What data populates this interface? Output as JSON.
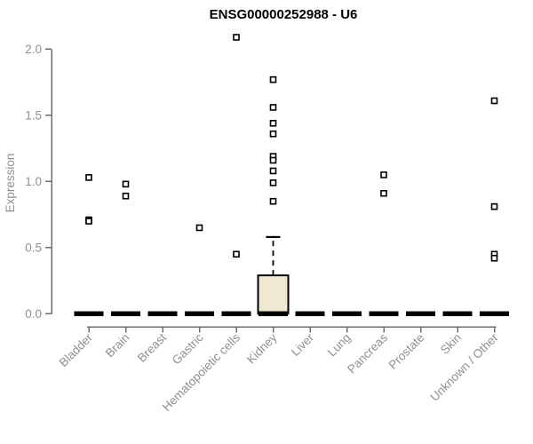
{
  "title": "ENSG00000252988 - U6",
  "ylabel": "Expression",
  "colors": {
    "box_fill": "#f0e9d2",
    "box_stroke": "#000000",
    "median_bar": "#000000",
    "point_stroke": "#000000",
    "point_fill": "#ffffff",
    "axis_line": "#6e6e6e",
    "axis_text": "#8f8f8f",
    "title_text": "#000000"
  },
  "chart_data": {
    "type": "boxplot",
    "title": "ENSG00000252988 - U6",
    "xlabel": "",
    "ylabel": "Expression",
    "ylim": [
      0,
      2.12
    ],
    "grid": false,
    "legend": "none",
    "ytick_values": [
      0.0,
      0.5,
      1.0,
      1.5,
      2.0
    ],
    "ytick_labels": [
      "0.0",
      "0.5",
      "1.0",
      "1.5",
      "2.0"
    ],
    "categories": [
      "Bladder",
      "Brain",
      "Breast",
      "Gastric",
      "Hematopoietic cells",
      "Kidney",
      "Liver",
      "Lung",
      "Pancreas",
      "Prostate",
      "Skin",
      "Unknown / Other"
    ],
    "series": [
      {
        "category": "Bladder",
        "box": {
          "q1": 0,
          "median": 0,
          "q3": 0,
          "whisker_low": 0,
          "whisker_high": 0
        },
        "points": [
          1.03,
          0.71,
          0.7
        ]
      },
      {
        "category": "Brain",
        "box": {
          "q1": 0,
          "median": 0,
          "q3": 0,
          "whisker_low": 0,
          "whisker_high": 0
        },
        "points": [
          0.98,
          0.89
        ]
      },
      {
        "category": "Breast",
        "box": {
          "q1": 0,
          "median": 0,
          "q3": 0,
          "whisker_low": 0,
          "whisker_high": 0
        },
        "points": []
      },
      {
        "category": "Gastric",
        "box": {
          "q1": 0,
          "median": 0,
          "q3": 0,
          "whisker_low": 0,
          "whisker_high": 0
        },
        "points": [
          0.65
        ]
      },
      {
        "category": "Hematopoietic cells",
        "box": {
          "q1": 0,
          "median": 0,
          "q3": 0,
          "whisker_low": 0,
          "whisker_high": 0
        },
        "points": [
          2.09,
          0.45
        ]
      },
      {
        "category": "Kidney",
        "box": {
          "q1": 0,
          "median": 0,
          "q3": 0.29,
          "whisker_low": 0,
          "whisker_high": 0.58
        },
        "points": [
          1.77,
          1.56,
          1.44,
          1.36,
          1.19,
          1.16,
          1.08,
          0.99,
          0.85
        ]
      },
      {
        "category": "Liver",
        "box": {
          "q1": 0,
          "median": 0,
          "q3": 0,
          "whisker_low": 0,
          "whisker_high": 0
        },
        "points": []
      },
      {
        "category": "Lung",
        "box": {
          "q1": 0,
          "median": 0,
          "q3": 0,
          "whisker_low": 0,
          "whisker_high": 0
        },
        "points": []
      },
      {
        "category": "Pancreas",
        "box": {
          "q1": 0,
          "median": 0,
          "q3": 0,
          "whisker_low": 0,
          "whisker_high": 0
        },
        "points": [
          1.05,
          0.91
        ]
      },
      {
        "category": "Prostate",
        "box": {
          "q1": 0,
          "median": 0,
          "q3": 0,
          "whisker_low": 0,
          "whisker_high": 0
        },
        "points": []
      },
      {
        "category": "Skin",
        "box": {
          "q1": 0,
          "median": 0,
          "q3": 0,
          "whisker_low": 0,
          "whisker_high": 0
        },
        "points": []
      },
      {
        "category": "Unknown / Other",
        "box": {
          "q1": 0,
          "median": 0,
          "q3": 0,
          "whisker_low": 0,
          "whisker_high": 0
        },
        "points": [
          1.61,
          0.81,
          0.45,
          0.42
        ]
      }
    ]
  }
}
